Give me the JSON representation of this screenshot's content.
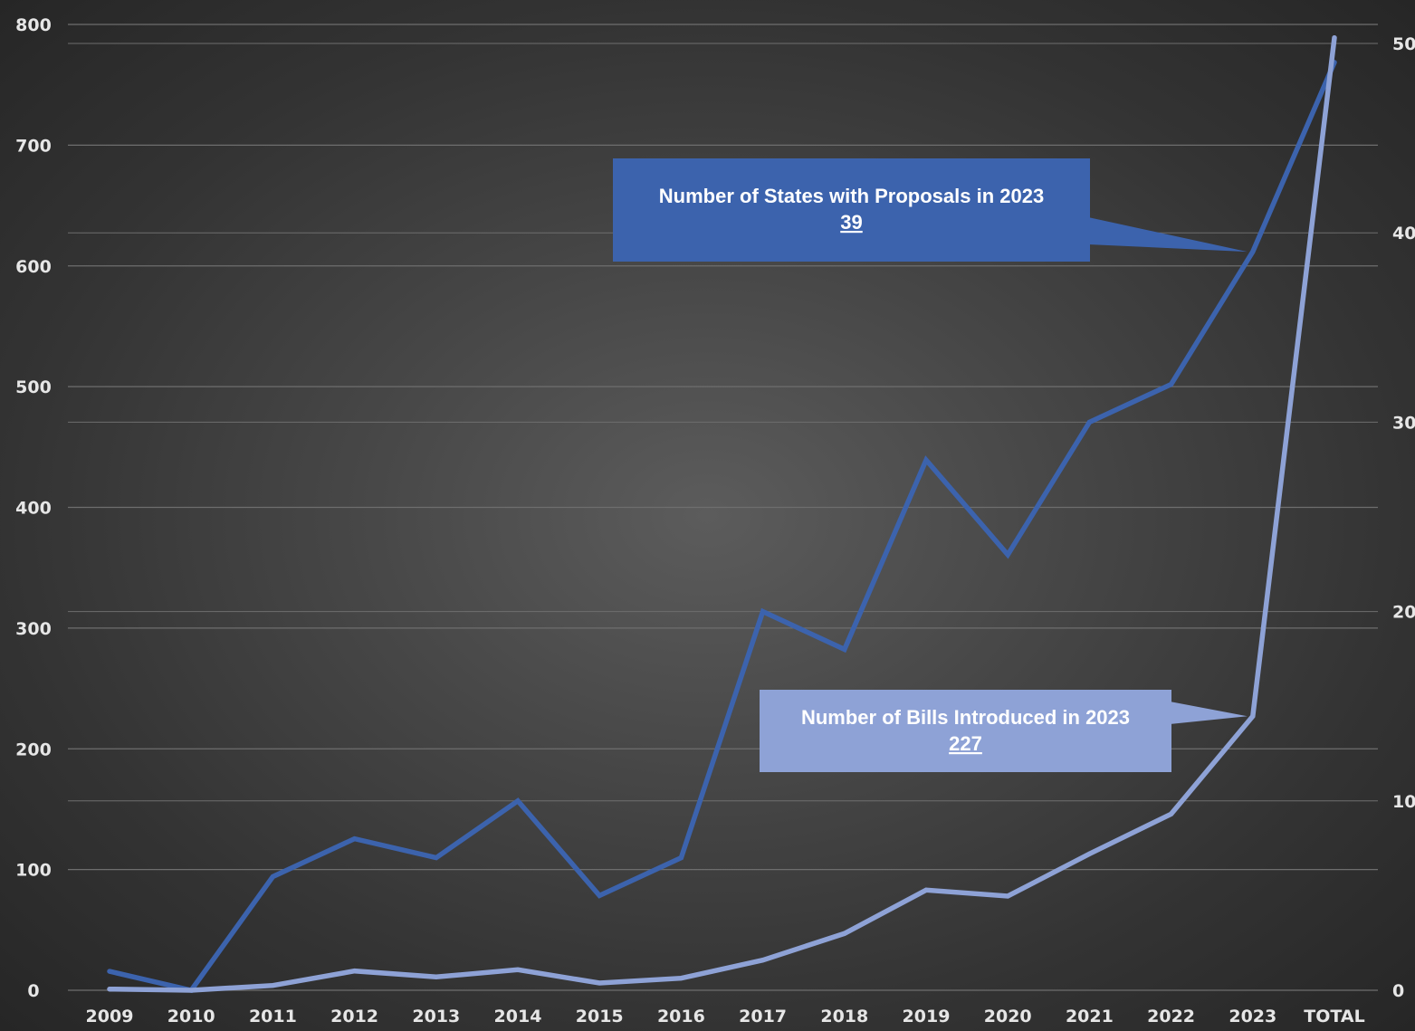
{
  "colors": {
    "states_line": "#3c63ad",
    "bills_line": "#8ea2d6",
    "grid": "#6e6e6e",
    "callout_states_bg": "#3c63ad",
    "callout_bills_bg": "#8ea2d6",
    "tick_text": "#e6e6e6"
  },
  "chart_data": {
    "type": "line",
    "categories": [
      "2009",
      "2010",
      "2011",
      "2012",
      "2013",
      "2014",
      "2015",
      "2016",
      "2017",
      "2018",
      "2019",
      "2020",
      "2021",
      "2022",
      "2023",
      "TOTAL"
    ],
    "y_left": {
      "min": 0,
      "max": 800,
      "ticks": [
        "0",
        "100",
        "200",
        "300",
        "400",
        "500",
        "600",
        "700",
        "800"
      ]
    },
    "y_right": {
      "min": 0,
      "max": 50,
      "ticks": [
        "0",
        "10",
        "20",
        "30",
        "40",
        "50"
      ]
    },
    "grid": true,
    "series": [
      {
        "axis": "right",
        "color": "#3c63ad",
        "values": [
          1,
          0,
          6,
          8,
          7,
          10,
          5,
          7,
          20,
          18,
          28,
          23,
          30,
          32,
          39,
          49
        ]
      },
      {
        "axis": "left",
        "color": "#8ea2d6",
        "values": [
          1,
          0,
          4,
          16,
          11,
          17,
          6,
          10,
          25,
          47,
          83,
          78,
          113,
          146,
          227,
          789
        ]
      }
    ],
    "annotations": [
      {
        "series": 0,
        "point": "2023",
        "line1": "Number of States with Proposals in 2023",
        "line2": "39"
      },
      {
        "series": 1,
        "point": "2023",
        "line1": "Number of Bills Introduced in 2023",
        "line2": "227"
      }
    ]
  }
}
